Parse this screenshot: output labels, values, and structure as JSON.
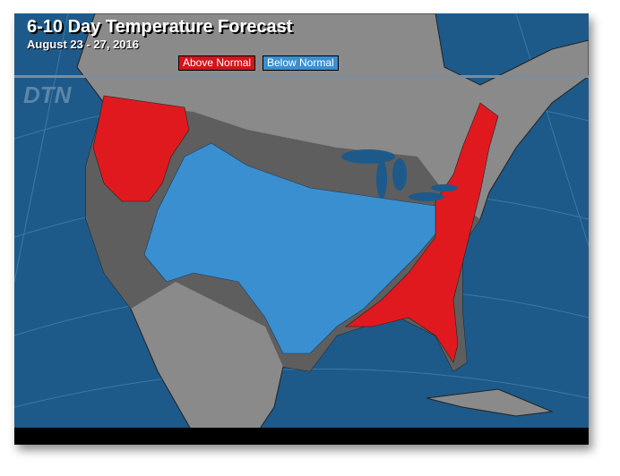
{
  "title": "6-10 Day Temperature Forecast",
  "subtitle": "August 23 - 27, 2016",
  "legend": [
    {
      "label": "Above Normal",
      "color": "#d2141c"
    },
    {
      "label": "Below Normal",
      "color": "#3a8fd0"
    }
  ],
  "logo": "DTN",
  "colors": {
    "ocean": "#1d5a8a",
    "land": "#8a8a8a",
    "normal": "#5e5e5e",
    "above": "#e0191f",
    "below": "#3a8fd0"
  }
}
